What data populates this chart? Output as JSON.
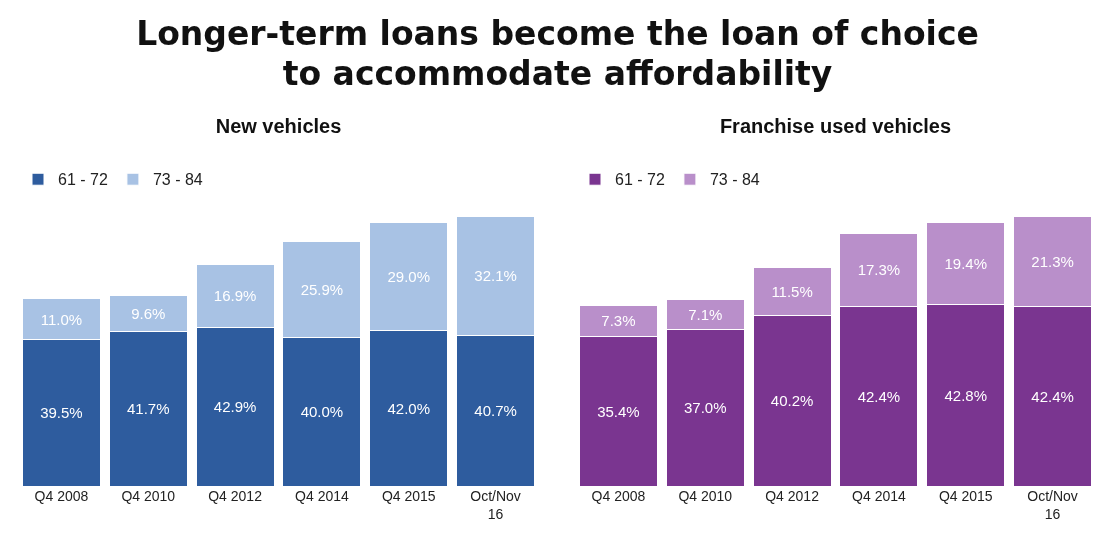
{
  "chart_data": [
    {
      "type": "bar",
      "title": "Longer-term loans become the loan of choice\nto accommodate affordability",
      "subtitle": "New vehicles",
      "stacked": true,
      "legend": "top left",
      "grid": false,
      "categories": [
        "Q4 2008",
        "Q4 2010",
        "Q4 2012",
        "Q4 2014",
        "Q4 2015",
        "Oct/Nov 16"
      ],
      "series": [
        {
          "name": "61 - 72",
          "color": "#2e5c9e",
          "values": [
            39.5,
            41.7,
            42.9,
            40.0,
            42.0,
            40.7
          ],
          "value_labels": [
            "39.5%",
            "41.7%",
            "42.9%",
            "40.0%",
            "42.0%",
            "40.7%"
          ]
        },
        {
          "name": "73 - 84",
          "color": "#a8c2e4",
          "values": [
            11.0,
            9.6,
            16.9,
            25.9,
            29.0,
            32.1
          ],
          "value_labels": [
            "11.0%",
            "9.6%",
            "16.9%",
            "25.9%",
            "29.0%",
            "32.1%"
          ]
        }
      ]
    },
    {
      "type": "bar",
      "title": "Franchise used vehicles",
      "stacked": true,
      "legend": "top left",
      "grid": false,
      "categories": [
        "Q4 2008",
        "Q4 2010",
        "Q4 2012",
        "Q4 2014",
        "Q4 2015",
        "Oct/Nov 16"
      ],
      "series": [
        {
          "name": "61 - 72",
          "color": "#7a3590",
          "values": [
            35.4,
            37.0,
            40.2,
            42.4,
            42.8,
            42.4
          ],
          "value_labels": [
            "35.4%",
            "37.0%",
            "40.2%",
            "42.4%",
            "42.8%",
            "42.4%"
          ]
        },
        {
          "name": "73 - 84",
          "color": "#b98fca",
          "values": [
            7.3,
            7.1,
            11.5,
            17.3,
            19.4,
            21.3
          ],
          "value_labels": [
            "7.3%",
            "7.1%",
            "11.5%",
            "17.3%",
            "19.4%",
            "21.3%"
          ]
        }
      ]
    }
  ]
}
